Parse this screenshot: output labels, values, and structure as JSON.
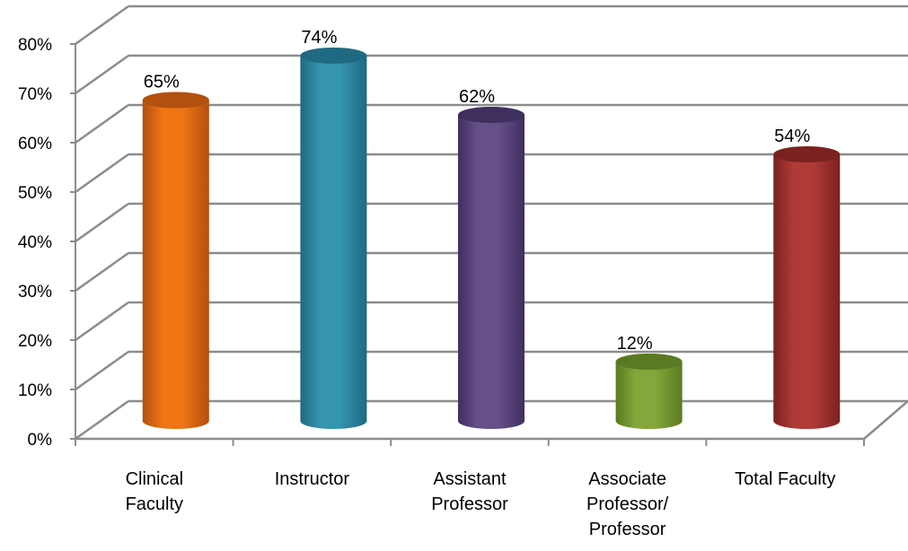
{
  "chart_data": {
    "type": "bar",
    "title": "",
    "xlabel": "",
    "ylabel": "",
    "categories": [
      [
        "Clinical",
        "Faculty"
      ],
      [
        "Instructor"
      ],
      [
        "Assistant",
        "Professor"
      ],
      [
        "Associate",
        "Professor/",
        "Professor"
      ],
      [
        "Total Faculty"
      ]
    ],
    "values": [
      65,
      74,
      62,
      12,
      54
    ],
    "value_labels": [
      "65%",
      "74%",
      "62%",
      "12%",
      "54%"
    ],
    "ylim": [
      0,
      80
    ],
    "y_ticks": [
      "0%",
      "10%",
      "20%",
      "30%",
      "40%",
      "50%",
      "60%",
      "70%",
      "80%"
    ],
    "grid": true,
    "legend": "none",
    "bar_colors": [
      "#F07515",
      "#3594B0",
      "#66508A",
      "#84A63A",
      "#B03A36"
    ],
    "bar_dark_colors": [
      "#B25010",
      "#1F6A82",
      "#3F2F5E",
      "#5A7A22",
      "#7A2220"
    ]
  }
}
